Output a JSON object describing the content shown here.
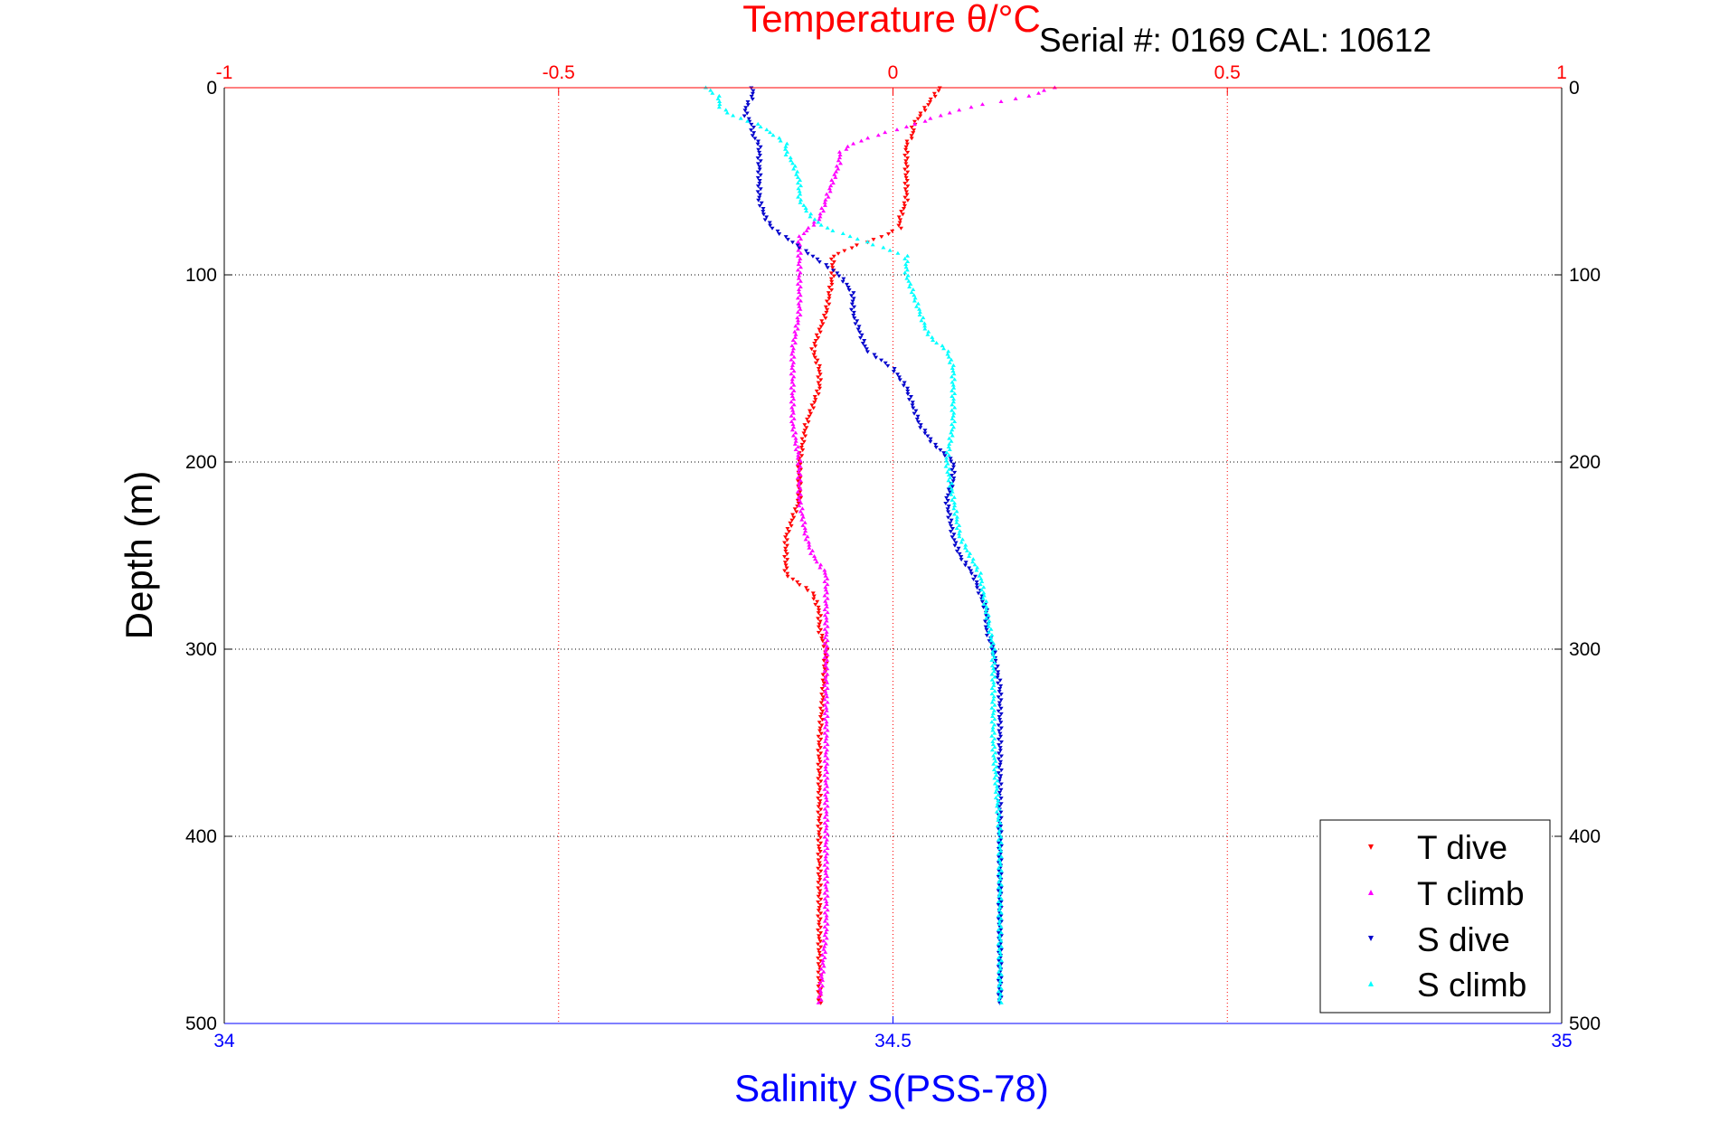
{
  "chart_data": {
    "type": "scatter",
    "title_top": "Temperature θ/°C",
    "serial_label": "Serial #: 0169 CAL: 10612",
    "ylabel": "Depth (m)",
    "xlabel_bottom": "Salinity S(PSS-78)",
    "ylim": [
      0,
      500
    ],
    "y_reversed": true,
    "y_ticks": [
      "0",
      "100",
      "200",
      "300",
      "400",
      "500"
    ],
    "temperature_axis": {
      "lim": [
        -1,
        1
      ],
      "ticks": [
        "-1",
        "-0.5",
        "0",
        "0.5",
        "1"
      ],
      "color": "#ff0000"
    },
    "salinity_axis": {
      "lim": [
        34,
        35
      ],
      "ticks": [
        "34",
        "34.5",
        "35"
      ],
      "color": "#0000ff"
    },
    "grid": true,
    "legend_position": "bottom-right",
    "series": [
      {
        "name": "T dive",
        "axis": "temperature",
        "color": "#ff0000",
        "depth": [
          0,
          5,
          10,
          15,
          20,
          25,
          30,
          40,
          50,
          60,
          70,
          75,
          80,
          85,
          90,
          100,
          120,
          140,
          150,
          160,
          180,
          200,
          210,
          220,
          230,
          240,
          260,
          270,
          280,
          290,
          300,
          350,
          400,
          450,
          490
        ],
        "values": [
          0.07,
          0.06,
          0.05,
          0.04,
          0.03,
          0.03,
          0.02,
          0.02,
          0.02,
          0.02,
          0.01,
          0.01,
          -0.02,
          -0.06,
          -0.09,
          -0.09,
          -0.1,
          -0.12,
          -0.11,
          -0.11,
          -0.13,
          -0.14,
          -0.14,
          -0.14,
          -0.15,
          -0.16,
          -0.16,
          -0.12,
          -0.11,
          -0.11,
          -0.1,
          -0.11,
          -0.11,
          -0.11,
          -0.11
        ]
      },
      {
        "name": "T climb",
        "axis": "temperature",
        "color": "#ff00ff",
        "depth": [
          0,
          5,
          10,
          15,
          20,
          25,
          30,
          35,
          40,
          50,
          60,
          70,
          80,
          90,
          100,
          120,
          140,
          160,
          180,
          200,
          220,
          240,
          250,
          260,
          270,
          280,
          300,
          350,
          400,
          450,
          490
        ],
        "values": [
          0.24,
          0.2,
          0.12,
          0.07,
          0.03,
          -0.02,
          -0.06,
          -0.08,
          -0.08,
          -0.09,
          -0.1,
          -0.11,
          -0.14,
          -0.14,
          -0.14,
          -0.14,
          -0.15,
          -0.15,
          -0.15,
          -0.14,
          -0.14,
          -0.13,
          -0.12,
          -0.1,
          -0.1,
          -0.1,
          -0.1,
          -0.1,
          -0.1,
          -0.1,
          -0.11
        ]
      },
      {
        "name": "S dive",
        "axis": "salinity",
        "color": "#0000cc",
        "depth": [
          0,
          5,
          10,
          15,
          20,
          25,
          30,
          40,
          50,
          60,
          70,
          75,
          80,
          85,
          90,
          95,
          100,
          110,
          120,
          130,
          140,
          145,
          150,
          160,
          170,
          180,
          190,
          200,
          210,
          220,
          240,
          250,
          260,
          270,
          280,
          290,
          300,
          320,
          350,
          400,
          450,
          490
        ],
        "values": [
          34.395,
          34.395,
          34.39,
          34.39,
          34.395,
          34.395,
          34.4,
          34.4,
          34.4,
          34.4,
          34.405,
          34.41,
          34.42,
          34.43,
          34.44,
          34.45,
          34.46,
          34.47,
          34.47,
          34.475,
          34.48,
          34.49,
          34.5,
          34.51,
          34.515,
          34.52,
          34.53,
          34.545,
          34.545,
          34.54,
          34.545,
          34.55,
          34.56,
          34.565,
          34.57,
          34.57,
          34.575,
          34.58,
          34.58,
          34.58,
          34.58,
          34.58
        ]
      },
      {
        "name": "S climb",
        "axis": "salinity",
        "color": "#00ffff",
        "depth": [
          0,
          5,
          10,
          15,
          20,
          25,
          30,
          35,
          40,
          50,
          60,
          65,
          70,
          75,
          80,
          85,
          90,
          100,
          110,
          120,
          130,
          135,
          140,
          150,
          160,
          180,
          200,
          220,
          240,
          260,
          280,
          300,
          350,
          400,
          450,
          490
        ],
        "values": [
          34.36,
          34.37,
          34.37,
          34.38,
          34.4,
          34.41,
          34.42,
          34.42,
          34.425,
          34.43,
          34.43,
          34.435,
          34.44,
          34.45,
          34.47,
          34.49,
          34.51,
          34.51,
          34.515,
          34.52,
          34.525,
          34.53,
          34.54,
          34.545,
          34.545,
          34.545,
          34.54,
          34.545,
          34.55,
          34.565,
          34.57,
          34.575,
          34.575,
          34.58,
          34.58,
          34.58
        ]
      }
    ]
  }
}
